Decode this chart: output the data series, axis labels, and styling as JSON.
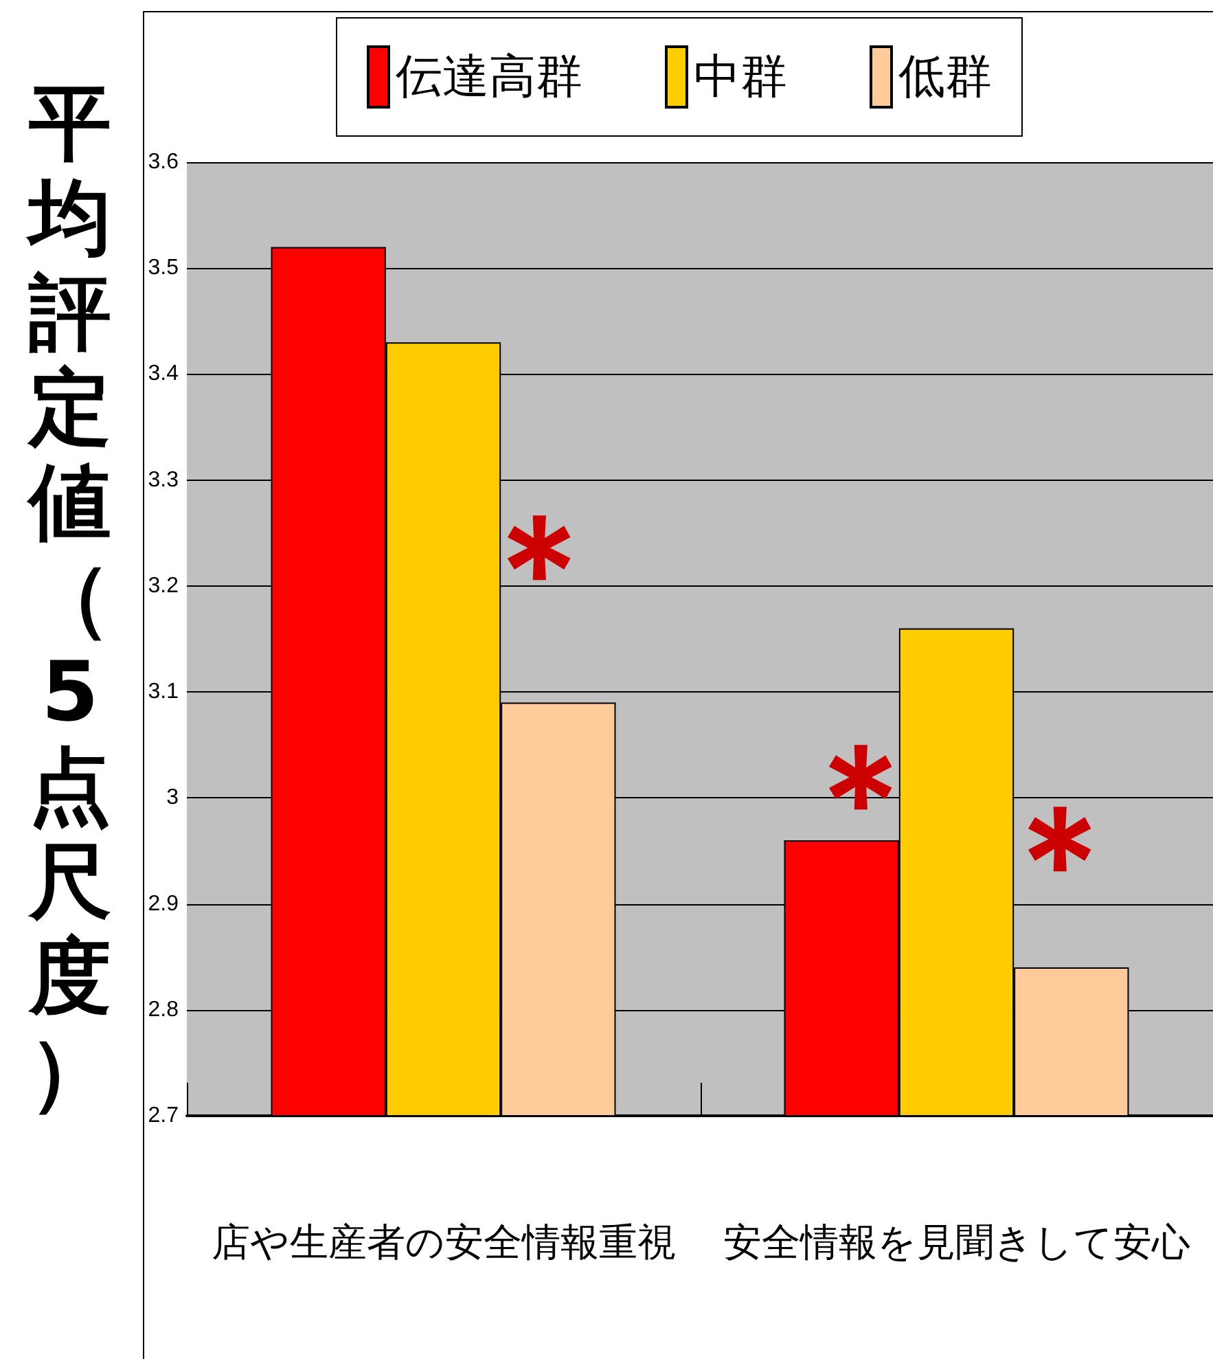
{
  "chart_data": {
    "type": "bar",
    "ylabel": "平均評定値（5点尺度）",
    "categories": [
      "店や生産者の安全情報重視",
      "安全情報を見聞きして安心"
    ],
    "series": [
      {
        "name": "伝達高群",
        "color": "#ff0000",
        "values": [
          3.52,
          2.96
        ]
      },
      {
        "name": "中群",
        "color": "#ffcc00",
        "values": [
          3.43,
          3.16
        ]
      },
      {
        "name": "低群",
        "color": "#ffcc99",
        "values": [
          3.09,
          2.84
        ]
      }
    ],
    "ylim": [
      2.7,
      3.6
    ],
    "yticks": [
      2.7,
      2.8,
      2.9,
      3,
      3.1,
      3.2,
      3.3,
      3.4,
      3.5,
      3.6
    ],
    "grid": "y",
    "legend": "top",
    "annotations": [
      "＊",
      "＊",
      "＊"
    ]
  }
}
